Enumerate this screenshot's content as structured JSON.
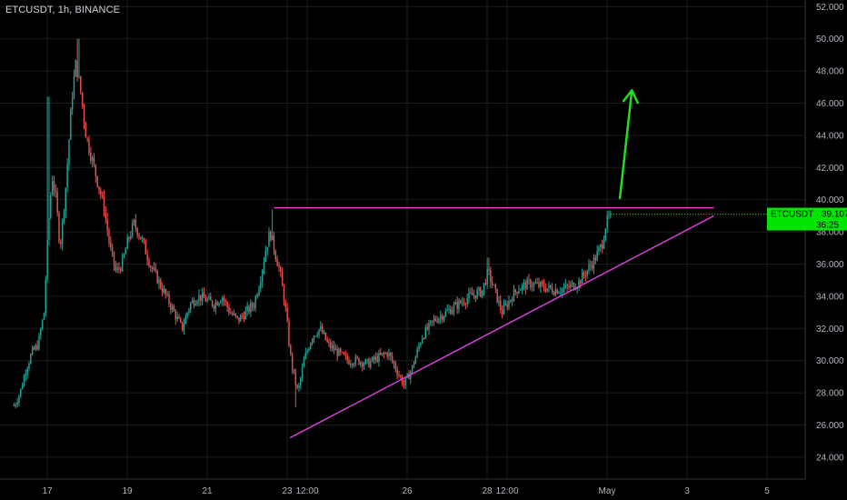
{
  "header": {
    "symbol_title": "ETCUSDT, 1h, BINANCE"
  },
  "price_label": {
    "symbol": "ETCUSDT",
    "price": "39.107",
    "countdown": "36:25",
    "color": "#00e600"
  },
  "colors": {
    "background": "#000000",
    "grid": "#1c1c1c",
    "up_candle": "#26a69a",
    "down_candle": "#ef5350",
    "triangle_lines": "#e040e0",
    "arrow": "#22dd22",
    "axis_text": "#b2b5be"
  },
  "chart_data": {
    "type": "candlestick",
    "title": "ETCUSDT, 1h, BINANCE",
    "ylim": [
      23,
      53
    ],
    "y_ticks": [
      "24.000",
      "26.000",
      "28.000",
      "30.000",
      "32.000",
      "34.000",
      "36.000",
      "38.000",
      "40.000",
      "42.000",
      "44.000",
      "46.000",
      "48.000",
      "50.000",
      "52.000"
    ],
    "y_tick_values": [
      24,
      26,
      28,
      30,
      32,
      34,
      36,
      38,
      40,
      42,
      44,
      46,
      48,
      50,
      52
    ],
    "x_ticks": [
      "17",
      "19",
      "21",
      "23",
      "12:00",
      "26",
      "28",
      "12:00",
      "May",
      "3",
      "5"
    ],
    "x_tick_days": [
      16.83,
      18.83,
      20.83,
      22.83,
      23.33,
      25.83,
      27.83,
      28.33,
      30.83,
      32.83,
      34.83
    ],
    "xlim_days": [
      16.0,
      36.2
    ],
    "last_price": 39.107,
    "price_path": [
      [
        16.0,
        27.2
      ],
      [
        16.15,
        28.0
      ],
      [
        16.3,
        29.5
      ],
      [
        16.45,
        30.5
      ],
      [
        16.6,
        31.0
      ],
      [
        16.75,
        33.0
      ],
      [
        16.85,
        38.0
      ],
      [
        16.95,
        41.5
      ],
      [
        17.05,
        40.0
      ],
      [
        17.15,
        37.0
      ],
      [
        17.3,
        41.0
      ],
      [
        17.45,
        46.5
      ],
      [
        17.55,
        48.5
      ],
      [
        17.65,
        47.0
      ],
      [
        17.8,
        44.0
      ],
      [
        17.95,
        42.5
      ],
      [
        18.1,
        41.0
      ],
      [
        18.25,
        39.5
      ],
      [
        18.4,
        37.0
      ],
      [
        18.55,
        35.5
      ],
      [
        18.7,
        36.0
      ],
      [
        18.85,
        37.5
      ],
      [
        19.0,
        38.5
      ],
      [
        19.2,
        37.5
      ],
      [
        19.4,
        36.0
      ],
      [
        19.6,
        35.0
      ],
      [
        19.8,
        34.0
      ],
      [
        20.0,
        33.0
      ],
      [
        20.2,
        32.0
      ],
      [
        20.4,
        33.5
      ],
      [
        20.6,
        34.0
      ],
      [
        20.8,
        33.8
      ],
      [
        21.0,
        33.5
      ],
      [
        21.2,
        34.0
      ],
      [
        21.4,
        33.0
      ],
      [
        21.6,
        32.5
      ],
      [
        21.8,
        33.0
      ],
      [
        22.0,
        33.5
      ],
      [
        22.15,
        35.0
      ],
      [
        22.3,
        37.0
      ],
      [
        22.4,
        38.0
      ],
      [
        22.5,
        37.0
      ],
      [
        22.65,
        35.5
      ],
      [
        22.8,
        33.0
      ],
      [
        22.9,
        30.5
      ],
      [
        23.0,
        29.0
      ],
      [
        23.1,
        28.0
      ],
      [
        23.25,
        30.0
      ],
      [
        23.45,
        31.5
      ],
      [
        23.65,
        32.0
      ],
      [
        23.85,
        31.0
      ],
      [
        24.1,
        30.5
      ],
      [
        24.35,
        30.0
      ],
      [
        24.6,
        30.0
      ],
      [
        24.85,
        29.8
      ],
      [
        25.1,
        30.2
      ],
      [
        25.35,
        30.5
      ],
      [
        25.55,
        29.5
      ],
      [
        25.75,
        28.5
      ],
      [
        25.95,
        29.5
      ],
      [
        26.2,
        31.5
      ],
      [
        26.5,
        32.5
      ],
      [
        26.8,
        33.0
      ],
      [
        27.1,
        33.5
      ],
      [
        27.4,
        34.0
      ],
      [
        27.7,
        34.3
      ],
      [
        27.85,
        35.5
      ],
      [
        28.0,
        34.5
      ],
      [
        28.2,
        33.0
      ],
      [
        28.4,
        33.8
      ],
      [
        28.6,
        34.5
      ],
      [
        28.9,
        34.8
      ],
      [
        29.2,
        34.6
      ],
      [
        29.5,
        34.4
      ],
      [
        29.8,
        34.5
      ],
      [
        30.1,
        34.8
      ],
      [
        30.3,
        35.5
      ],
      [
        30.5,
        36.2
      ],
      [
        30.7,
        37.2
      ],
      [
        30.8,
        38.5
      ],
      [
        30.92,
        39.1
      ]
    ],
    "resistance_line": {
      "from": [
        22.5,
        39.5
      ],
      "to": [
        33.5,
        39.5
      ]
    },
    "support_line": {
      "from": [
        22.9,
        25.2
      ],
      "to": [
        33.5,
        39.0
      ]
    },
    "arrow": {
      "from": [
        31.15,
        40.1
      ],
      "to": [
        31.45,
        46.8
      ]
    }
  }
}
